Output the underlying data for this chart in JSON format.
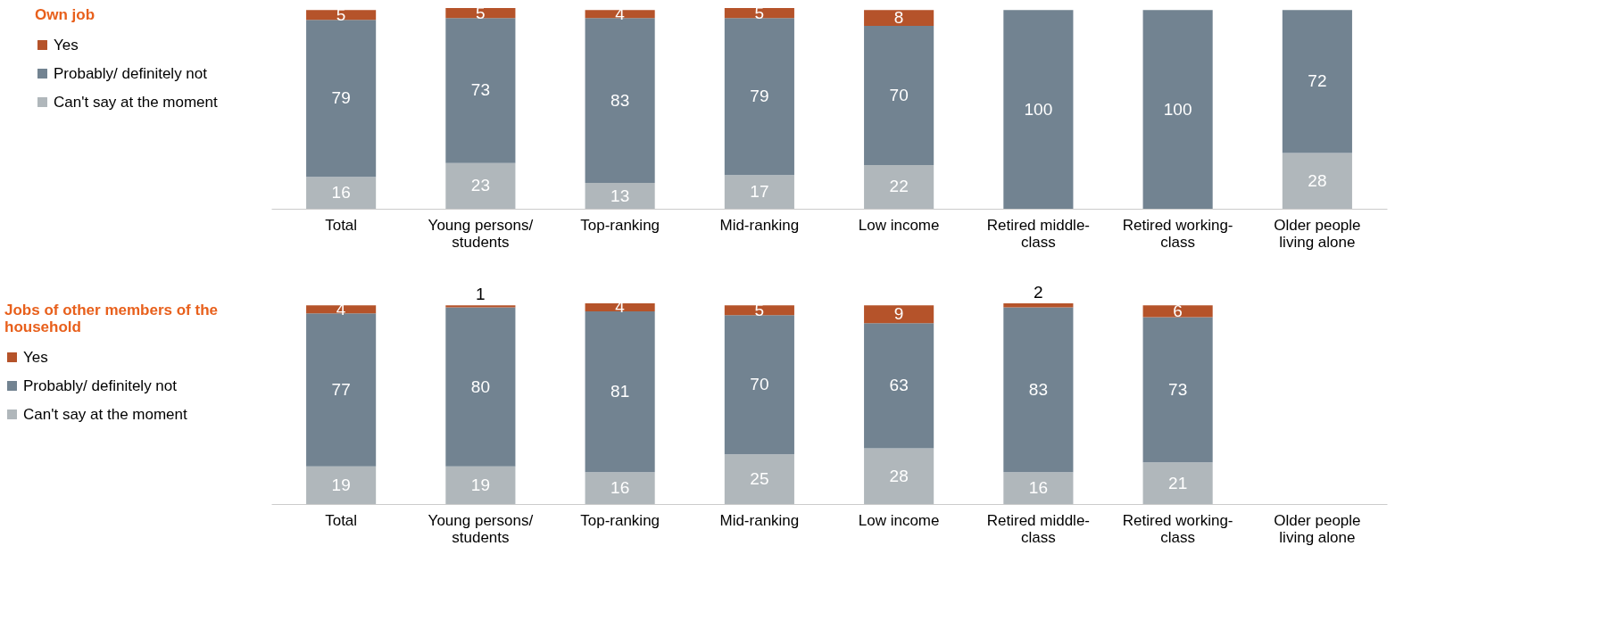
{
  "chart_data": [
    {
      "type": "bar",
      "stacked": true,
      "legend_title": "Own job",
      "legend": "left",
      "data_labels": true,
      "ylim": [
        0,
        101
      ],
      "tick_labels": "x",
      "grid": false,
      "categories": [
        "Total",
        "Young persons/ students",
        "Top-ranking",
        "Mid-ranking",
        "Low income",
        "Retired middle-class",
        "Retired working-class",
        "Older people living alone"
      ],
      "series": [
        {
          "name": "Can't say at the moment",
          "color": "#b0b7bb",
          "values": [
            16,
            23,
            13,
            17,
            22,
            null,
            null,
            28
          ]
        },
        {
          "name": "Probably/ definitely not",
          "color": "#728391",
          "values": [
            79,
            73,
            83,
            79,
            70,
            100,
            100,
            72
          ]
        },
        {
          "name": "Yes",
          "color": "#b5532a",
          "values": [
            5,
            5,
            4,
            5,
            8,
            null,
            null,
            null
          ]
        }
      ]
    },
    {
      "type": "bar",
      "stacked": true,
      "legend_title": "Jobs of other members of the household",
      "legend": "left",
      "data_labels": true,
      "ylim": [
        0,
        101
      ],
      "tick_labels": "x",
      "grid": false,
      "categories": [
        "Total",
        "Young persons/ students",
        "Top-ranking",
        "Mid-ranking",
        "Low income",
        "Retired middle-class",
        "Retired working-class",
        "Older people living alone"
      ],
      "series": [
        {
          "name": "Can't say at the moment",
          "color": "#b0b7bb",
          "values": [
            19,
            19,
            16,
            25,
            28,
            16,
            21,
            null
          ]
        },
        {
          "name": "Probably/ definitely not",
          "color": "#728391",
          "values": [
            77,
            80,
            81,
            70,
            63,
            83,
            73,
            null
          ]
        },
        {
          "name": "Yes",
          "color": "#b5532a",
          "values": [
            4,
            1,
            4,
            5,
            9,
            2,
            6,
            null
          ]
        }
      ]
    }
  ]
}
